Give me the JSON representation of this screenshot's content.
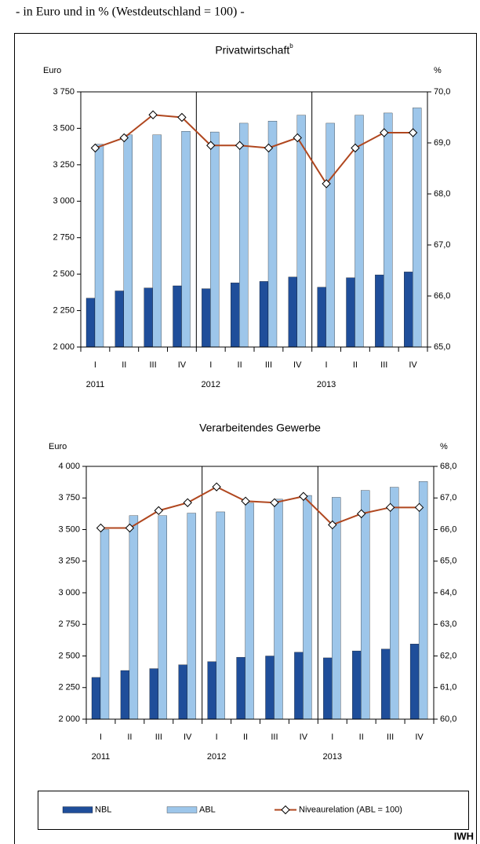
{
  "header": {
    "subtitle": "- in Euro und in % (Westdeutschland = 100) -"
  },
  "chart_data": [
    {
      "type": "bar",
      "title": "Privatwirtschaft",
      "title_superscript": "b",
      "y_label": "Euro",
      "y2_label": "%",
      "categories": [
        "I",
        "II",
        "III",
        "IV",
        "I",
        "II",
        "III",
        "IV",
        "I",
        "II",
        "III",
        "IV"
      ],
      "group_labels": [
        "2011",
        "2012",
        "2013"
      ],
      "ylim": [
        2000,
        3750
      ],
      "yticks": [
        {
          "value": 2000,
          "label": "2 000"
        },
        {
          "value": 2250,
          "label": "2 250"
        },
        {
          "value": 2500,
          "label": "2 500"
        },
        {
          "value": 2750,
          "label": "2 750"
        },
        {
          "value": 3000,
          "label": "3 000"
        },
        {
          "value": 3250,
          "label": "3 250"
        },
        {
          "value": 3500,
          "label": "3 500"
        },
        {
          "value": 3750,
          "label": "3 750"
        }
      ],
      "y2lim": [
        65,
        70
      ],
      "y2ticks": [
        {
          "value": 65,
          "label": "65,0"
        },
        {
          "value": 66,
          "label": "66,0"
        },
        {
          "value": 67,
          "label": "67,0"
        },
        {
          "value": 68,
          "label": "68,0"
        },
        {
          "value": 69,
          "label": "69,0"
        },
        {
          "value": 70,
          "label": "70,0"
        }
      ],
      "series": [
        {
          "type": "bar",
          "color": "#1f4e9a",
          "values": [
            2335,
            2385,
            2405,
            2420,
            2400,
            2440,
            2450,
            2480,
            2410,
            2475,
            2495,
            2515
          ]
        },
        {
          "type": "bar",
          "color": "#9dc6ea",
          "values": [
            3390,
            3455,
            3455,
            3480,
            3475,
            3535,
            3550,
            3590,
            3535,
            3590,
            3605,
            3640
          ]
        },
        {
          "type": "line",
          "axis": "y2",
          "color": "#b0471f",
          "values": [
            68.9,
            69.1,
            69.55,
            69.5,
            68.95,
            68.95,
            68.9,
            69.1,
            68.2,
            68.9,
            69.2,
            69.2
          ]
        }
      ]
    },
    {
      "type": "bar",
      "title": "Verarbeitendes Gewerbe",
      "y_label": "Euro",
      "y2_label": "%",
      "categories": [
        "I",
        "II",
        "III",
        "IV",
        "I",
        "II",
        "III",
        "IV",
        "I",
        "II",
        "III",
        "IV"
      ],
      "group_labels": [
        "2011",
        "2012",
        "2013"
      ],
      "ylim": [
        2000,
        4000
      ],
      "yticks": [
        {
          "value": 2000,
          "label": "2 000"
        },
        {
          "value": 2250,
          "label": "2 250"
        },
        {
          "value": 2500,
          "label": "2 500"
        },
        {
          "value": 2750,
          "label": "2 750"
        },
        {
          "value": 3000,
          "label": "3 000"
        },
        {
          "value": 3250,
          "label": "3 250"
        },
        {
          "value": 3500,
          "label": "3 500"
        },
        {
          "value": 3750,
          "label": "3 750"
        },
        {
          "value": 4000,
          "label": "4 000"
        }
      ],
      "y2lim": [
        60,
        68
      ],
      "y2ticks": [
        {
          "value": 60,
          "label": "60,0"
        },
        {
          "value": 61,
          "label": "61,0"
        },
        {
          "value": 62,
          "label": "62,0"
        },
        {
          "value": 63,
          "label": "63,0"
        },
        {
          "value": 64,
          "label": "64,0"
        },
        {
          "value": 65,
          "label": "65,0"
        },
        {
          "value": 66,
          "label": "66,0"
        },
        {
          "value": 67,
          "label": "67,0"
        },
        {
          "value": 68,
          "label": "68,0"
        }
      ],
      "series": [
        {
          "type": "bar",
          "name": "NBL",
          "color": "#1f4e9a",
          "values": [
            2330,
            2385,
            2400,
            2430,
            2455,
            2490,
            2500,
            2530,
            2485,
            2540,
            2555,
            2595
          ]
        },
        {
          "type": "bar",
          "name": "ABL",
          "color": "#9dc6ea",
          "values": [
            3500,
            3610,
            3610,
            3630,
            3640,
            3710,
            3740,
            3770,
            3755,
            3810,
            3835,
            3880
          ]
        },
        {
          "type": "line",
          "axis": "y2",
          "name": "Niveaurelation (ABL = 100)",
          "color": "#b0471f",
          "values": [
            66.05,
            66.05,
            66.6,
            66.85,
            67.35,
            66.9,
            66.85,
            67.05,
            66.15,
            66.5,
            66.7,
            66.7
          ]
        }
      ]
    }
  ],
  "footer": {
    "source": "IWH"
  }
}
